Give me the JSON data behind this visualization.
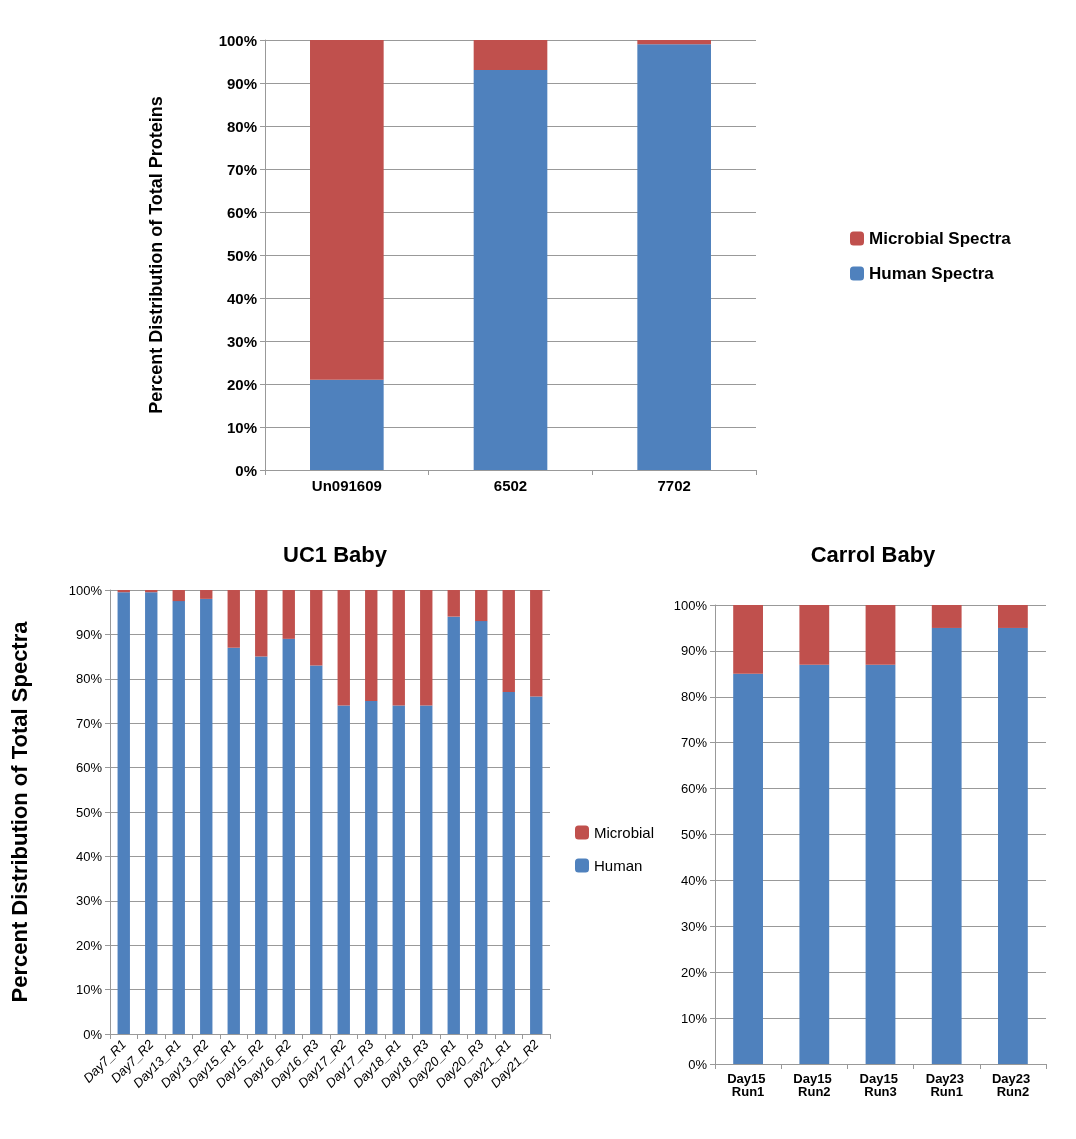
{
  "chart_data": [
    {
      "type": "bar",
      "stacked": true,
      "ylabel": "Percent Distribution of Total Proteins",
      "categories": [
        "Un091609",
        "6502",
        "7702"
      ],
      "series": [
        {
          "name": "Human Spectra",
          "color": "#4f81bd",
          "values": [
            21,
            93,
            99
          ]
        },
        {
          "name": "Microbial Spectra",
          "color": "#c0504d",
          "values": [
            79,
            7,
            1
          ]
        }
      ],
      "ylim": [
        0,
        100
      ],
      "yticks": [
        {
          "value": 0,
          "label": "0%"
        },
        {
          "value": 10,
          "label": "10%"
        },
        {
          "value": 20,
          "label": "20%"
        },
        {
          "value": 30,
          "label": "30%"
        },
        {
          "value": 40,
          "label": "40%"
        },
        {
          "value": 50,
          "label": "50%"
        },
        {
          "value": 60,
          "label": "60%"
        },
        {
          "value": 70,
          "label": "70%"
        },
        {
          "value": 80,
          "label": "80%"
        },
        {
          "value": 90,
          "label": "90%"
        },
        {
          "value": 100,
          "label": "100%"
        }
      ],
      "grid": "y",
      "legend": "right"
    },
    {
      "type": "bar",
      "stacked": true,
      "title": "UC1 Baby",
      "ylabel": "Percent Distribution of Total Spectra",
      "categories": [
        "Day7_R1",
        "Day7_R2",
        "Day13_R1",
        "Day13_R2",
        "Day15_R1",
        "Day15_R2",
        "Day16_R2",
        "Day16_R3",
        "Day17_R2",
        "Day17_R3",
        "Day18_R1",
        "Day18_R3",
        "Day20_R1",
        "Day20_R3",
        "Day21_R1",
        "Day21_R2"
      ],
      "series": [
        {
          "name": "Human",
          "color": "#4f81bd",
          "values": [
            99.5,
            99.5,
            97.5,
            98,
            87,
            85,
            89,
            83,
            74,
            75,
            74,
            74,
            94,
            93,
            77,
            76
          ]
        },
        {
          "name": "Microbial",
          "color": "#c0504d",
          "values": [
            0.5,
            0.5,
            2.5,
            2,
            13,
            15,
            11,
            17,
            26,
            25,
            26,
            26,
            6,
            7,
            23,
            24
          ]
        }
      ],
      "ylim": [
        0,
        100
      ],
      "yticks": [
        {
          "value": 0,
          "label": "0%"
        },
        {
          "value": 10,
          "label": "10%"
        },
        {
          "value": 20,
          "label": "20%"
        },
        {
          "value": 30,
          "label": "30%"
        },
        {
          "value": 40,
          "label": "40%"
        },
        {
          "value": 50,
          "label": "50%"
        },
        {
          "value": 60,
          "label": "60%"
        },
        {
          "value": 70,
          "label": "70%"
        },
        {
          "value": 80,
          "label": "80%"
        },
        {
          "value": 90,
          "label": "90%"
        },
        {
          "value": 100,
          "label": "100%"
        }
      ],
      "grid": "y",
      "legend": "right"
    },
    {
      "type": "bar",
      "stacked": true,
      "title": "Carrol Baby",
      "categories": [
        "Day15 Run1",
        "Day15 Run2",
        "Day15 Run3",
        "Day23 Run1",
        "Day23 Run2"
      ],
      "series": [
        {
          "color": "#4f81bd",
          "values": [
            85,
            87,
            87,
            95,
            95
          ]
        },
        {
          "color": "#c0504d",
          "values": [
            15,
            13,
            13,
            5,
            5
          ]
        }
      ],
      "ylim": [
        0,
        100
      ],
      "yticks": [
        {
          "value": 0,
          "label": "0%"
        },
        {
          "value": 10,
          "label": "10%"
        },
        {
          "value": 20,
          "label": "20%"
        },
        {
          "value": 30,
          "label": "30%"
        },
        {
          "value": 40,
          "label": "40%"
        },
        {
          "value": 50,
          "label": "50%"
        },
        {
          "value": 60,
          "label": "60%"
        },
        {
          "value": 70,
          "label": "70%"
        },
        {
          "value": 80,
          "label": "80%"
        },
        {
          "value": 90,
          "label": "90%"
        },
        {
          "value": 100,
          "label": "100%"
        }
      ],
      "grid": "y"
    }
  ]
}
